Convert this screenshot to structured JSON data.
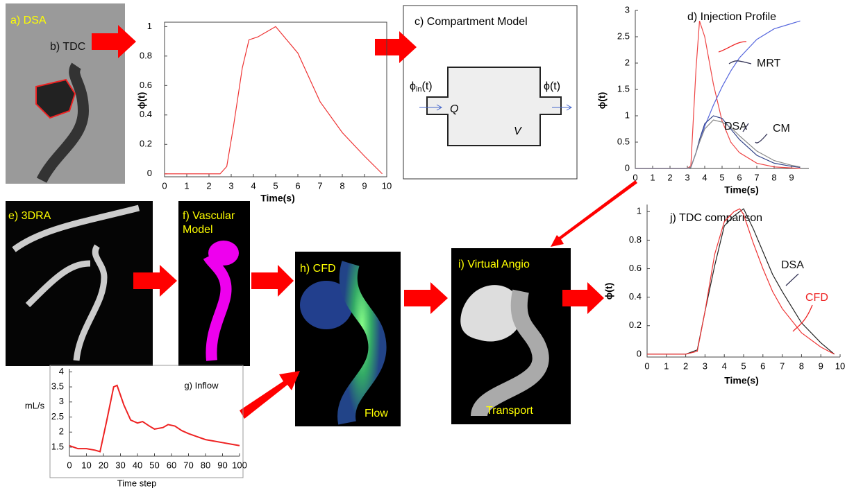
{
  "panels": {
    "a": "a) DSA",
    "b": "b) TDC",
    "c": {
      "title": "c) Compartment Model",
      "inflow": {
        "symbol": "ϕ",
        "subscript": "in",
        "arg": "(t)"
      },
      "outflow": "ϕ(t)",
      "rate": "Q",
      "volume": "V"
    },
    "e": "e) 3DRA",
    "f": [
      "f) Vascular",
      "Model"
    ],
    "h": "h) CFD",
    "h_caption": "Flow",
    "i": "i) Virtual Angio",
    "i_caption": "Transport"
  },
  "chart_data": [
    {
      "type": "line",
      "xlabel": "Time(s)",
      "ylabel": "ϕ(t)",
      "x": [
        0,
        2.5,
        2.8,
        3.1,
        3.5,
        3.8,
        4.2,
        5,
        6,
        7,
        8,
        9,
        9.8
      ],
      "series": [
        {
          "color": "#e33",
          "values": [
            0,
            0,
            0.05,
            0.32,
            0.72,
            0.91,
            0.93,
            1.0,
            0.82,
            0.49,
            0.28,
            0.12,
            0
          ]
        }
      ],
      "xlim": [
        0,
        10
      ],
      "xticks": [
        0,
        1,
        2,
        3,
        4,
        5,
        6,
        7,
        8,
        9,
        10
      ],
      "ylim": [
        -0.02,
        1.03
      ],
      "yticks": [
        0,
        0.2,
        0.4,
        0.6,
        0.8,
        1
      ]
    },
    {
      "type": "line",
      "title": "d) Injection Profile",
      "xlabel": "Time(s)",
      "ylabel": "ϕ(t)",
      "annotations": [
        "MRT",
        "DSA",
        "CM"
      ],
      "x": [
        0,
        1,
        2,
        3,
        3.2,
        3.5,
        3.7,
        4,
        4.5,
        5,
        5.5,
        6,
        7,
        8,
        9,
        9.5
      ],
      "series": [
        {
          "color": "#e44",
          "values": [
            0,
            0,
            0,
            0,
            0.05,
            1.9,
            2.8,
            2.5,
            1.6,
            0.9,
            0.5,
            0.3,
            0.1,
            0.03,
            0.01,
            0
          ]
        },
        {
          "color": "#5566dd",
          "values": [
            0,
            0,
            0,
            0,
            0.02,
            0.3,
            0.5,
            0.8,
            1.2,
            1.55,
            1.85,
            2.1,
            2.45,
            2.65,
            2.75,
            2.8
          ]
        },
        {
          "color": "#334488",
          "values": [
            0,
            0,
            0,
            0,
            0.02,
            0.3,
            0.55,
            0.85,
            1.0,
            0.95,
            0.75,
            0.55,
            0.25,
            0.1,
            0.04,
            0.02
          ]
        },
        {
          "color": "#888",
          "values": [
            0,
            0,
            0,
            0,
            0.02,
            0.3,
            0.5,
            0.75,
            0.92,
            0.88,
            0.78,
            0.62,
            0.33,
            0.15,
            0.06,
            0.03
          ]
        }
      ],
      "xlim": [
        0,
        10
      ],
      "xticks": [
        0,
        1,
        2,
        3,
        4,
        5,
        6,
        7,
        8,
        9
      ],
      "ylim": [
        0,
        3
      ],
      "yticks": [
        0,
        0.5,
        1,
        1.5,
        2,
        2.5,
        3
      ]
    },
    {
      "type": "line",
      "title": "g) Inflow",
      "xlabel": "Time step",
      "ylabel": "mL/s",
      "x": [
        0,
        5,
        10,
        15,
        18,
        22,
        26,
        28,
        32,
        36,
        40,
        43,
        47,
        50,
        55,
        58,
        62,
        66,
        70,
        75,
        80,
        85,
        90,
        95,
        100
      ],
      "series": [
        {
          "color": "#e22",
          "values": [
            1.55,
            1.45,
            1.45,
            1.4,
            1.35,
            2.4,
            3.5,
            3.55,
            2.9,
            2.4,
            2.3,
            2.35,
            2.2,
            2.1,
            2.15,
            2.25,
            2.2,
            2.05,
            1.95,
            1.85,
            1.75,
            1.7,
            1.65,
            1.6,
            1.55
          ]
        }
      ],
      "xlim": [
        0,
        100
      ],
      "xticks": [
        0,
        10,
        20,
        30,
        40,
        50,
        60,
        70,
        80,
        90,
        100
      ],
      "ylim": [
        1.2,
        4.1
      ],
      "yticks": [
        1.5,
        2,
        2.5,
        3,
        3.5,
        4
      ]
    },
    {
      "type": "line",
      "title": "j) TDC comparison",
      "xlabel": "Time(s)",
      "ylabel": "ϕ(t)",
      "annotations": [
        "DSA",
        "CFD"
      ],
      "x": [
        0,
        2,
        2.6,
        3,
        3.5,
        4,
        4.5,
        4.8,
        5,
        5.5,
        6,
        6.5,
        7,
        8,
        9,
        9.7
      ],
      "series": [
        {
          "color": "#222",
          "values": [
            0,
            0,
            0.03,
            0.3,
            0.62,
            0.9,
            0.97,
            1.0,
            1.02,
            0.88,
            0.72,
            0.56,
            0.44,
            0.22,
            0.08,
            0
          ]
        },
        {
          "color": "#e33",
          "values": [
            0,
            0,
            0.02,
            0.3,
            0.7,
            0.93,
            1.0,
            1.02,
            0.98,
            0.78,
            0.6,
            0.44,
            0.32,
            0.15,
            0.05,
            0
          ]
        }
      ],
      "xlim": [
        0,
        10
      ],
      "xticks": [
        0,
        1,
        2,
        3,
        4,
        5,
        6,
        7,
        8,
        9,
        10
      ],
      "ylim": [
        -0.02,
        1.05
      ],
      "yticks": [
        0,
        0.2,
        0.4,
        0.6,
        0.8,
        1
      ]
    }
  ]
}
